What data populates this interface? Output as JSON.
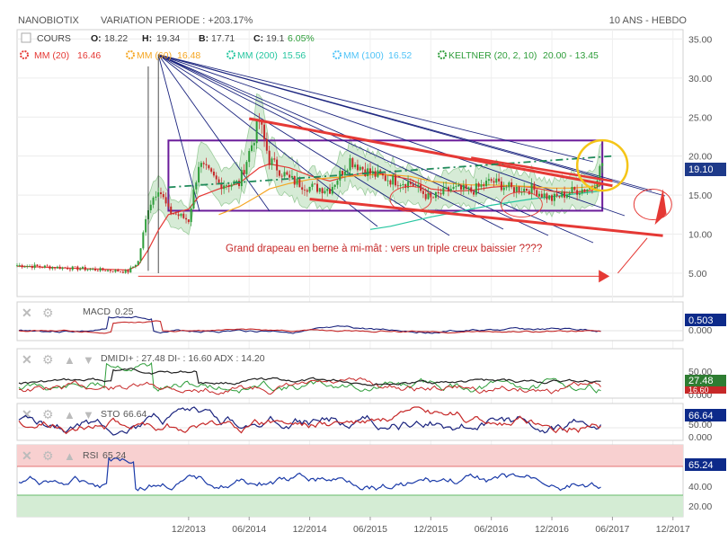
{
  "header": {
    "symbol": "NANOBIOTIX",
    "variation": "VARIATION PERIODE : +203.17%",
    "period": "10 ANS - HEBDO"
  },
  "legend": {
    "cours_label": "COURS",
    "ohlc": [
      {
        "k": "O:",
        "v": "18.22"
      },
      {
        "k": "H:",
        "v": "19.34"
      },
      {
        "k": "B:",
        "v": "17.71"
      },
      {
        "k": "C:",
        "v": "19.1"
      }
    ],
    "change": "6.05%",
    "indicators": [
      {
        "label": "MM (20)",
        "value": "16.46",
        "color": "#e53935"
      },
      {
        "label": "MM (60)",
        "value": "16.48",
        "color": "#f5a623"
      },
      {
        "label": "MM (200)",
        "value": "15.56",
        "color": "#26c6a0"
      },
      {
        "label": "MM (100)",
        "value": "16.52",
        "color": "#4fc3f7"
      },
      {
        "label": "KELTNER (20, 2, 10)",
        "value": "20.00 - 13.45",
        "color": "#2e9d3a"
      }
    ]
  },
  "annotation": "Grand drapeau en berne à mi-mât : vers un triple creux baissier ????",
  "panels": {
    "macd": {
      "label": "MACD",
      "value": "0.25",
      "badge": "0.503",
      "axis": [
        "0.000"
      ]
    },
    "dmi": {
      "label": "DMI",
      "values": "DI+ : 27.48 DI- : 16.60 ADX : 14.20",
      "badges": [
        "27.48",
        "16.60"
      ],
      "axis": [
        "50.00",
        "0.000"
      ]
    },
    "sto": {
      "label": "STO",
      "value": "66.64",
      "badge": "66.64",
      "axis": [
        "50.00",
        "0.000"
      ]
    },
    "rsi": {
      "label": "RSI",
      "value": "65.24",
      "badge": "65.24",
      "axis": [
        "40.00",
        "20.00"
      ]
    }
  },
  "colors": {
    "candle_up": "#2e9d3a",
    "candle_down": "#c62828",
    "keltner_fill": "#cfe8cf",
    "fan": "#1a237e",
    "flag_lines": "#e53935",
    "rectangle": "#6a1b9a",
    "circle": "#f5c518",
    "badge_blue": "#0d47a1",
    "badge_green": "#2e7d32",
    "badge_red": "#c62828",
    "rsi_zone": "#f8d0d0"
  },
  "chart_data": {
    "type": "line",
    "title": "NANOBIOTIX",
    "xlabel": "",
    "ylabel": "",
    "x_ticks": [
      "12/2013",
      "06/2014",
      "12/2014",
      "06/2015",
      "12/2015",
      "06/2016",
      "12/2016",
      "06/2017",
      "12/2017"
    ],
    "y_ticks": [
      5,
      10,
      15,
      20,
      25,
      30,
      35
    ],
    "ylim": [
      2.0,
      36.2
    ],
    "xlim": [
      "2012-07",
      "2018-01"
    ],
    "last_price": "19.10",
    "x": [
      "2012-07",
      "2013-01",
      "2013-06",
      "2013-07",
      "2013-08",
      "2013-09",
      "2013-10",
      "2013-12",
      "2014-01",
      "2014-03",
      "2014-05",
      "2014-07",
      "2014-08",
      "2014-10",
      "2014-12",
      "2015-02",
      "2015-04",
      "2015-06",
      "2015-08",
      "2015-10",
      "2015-12",
      "2016-02",
      "2016-04",
      "2016-06",
      "2016-08",
      "2016-10",
      "2016-12",
      "2017-02",
      "2017-04",
      "2017-05"
    ],
    "series": [
      {
        "name": "COURS",
        "values": [
          6.0,
          5.6,
          5.2,
          6.5,
          13.5,
          16.0,
          13.0,
          11.8,
          19.0,
          16.5,
          16.5,
          24.5,
          19.5,
          17.0,
          16.0,
          15.8,
          19.5,
          17.8,
          17.0,
          16.5,
          14.5,
          15.8,
          15.5,
          16.8,
          15.8,
          15.8,
          14.5,
          15.5,
          16.0,
          19.1
        ]
      },
      {
        "name": "MM (20)",
        "values": [
          5.9,
          5.6,
          5.4,
          6.0,
          8.0,
          10.5,
          12.5,
          13.2,
          14.8,
          15.8,
          16.5,
          18.5,
          19.0,
          18.5,
          17.5,
          16.8,
          17.5,
          18.0,
          17.5,
          17.0,
          15.8,
          15.5,
          15.6,
          16.0,
          16.2,
          16.0,
          15.5,
          15.3,
          15.6,
          16.46
        ]
      },
      {
        "name": "MM (60)",
        "values": [
          null,
          null,
          null,
          null,
          null,
          null,
          null,
          null,
          null,
          12.5,
          13.5,
          15.0,
          15.8,
          16.5,
          17.0,
          17.2,
          17.4,
          17.6,
          17.6,
          17.4,
          16.8,
          16.5,
          16.3,
          16.3,
          16.2,
          16.1,
          15.9,
          15.9,
          16.1,
          16.48
        ]
      },
      {
        "name": "MM (200)",
        "values": [
          null,
          null,
          null,
          null,
          null,
          null,
          null,
          null,
          null,
          null,
          null,
          null,
          null,
          null,
          null,
          null,
          null,
          10.6,
          11.0,
          11.6,
          12.2,
          12.7,
          13.2,
          13.7,
          14.1,
          14.5,
          14.8,
          15.1,
          15.4,
          15.56
        ]
      }
    ],
    "keltner": {
      "upper_last": 20.0,
      "lower_last": 13.45
    },
    "rectangle": {
      "x0": "2013-10",
      "x1": "2017-05",
      "y0": 13.0,
      "y1": 22.0
    },
    "flag": {
      "upper": [
        [
          "2014-06",
          24.8
        ],
        [
          "2017-06",
          16.2
        ]
      ],
      "lower": [
        [
          "2014-12",
          14.5
        ],
        [
          "2017-11",
          9.8
        ]
      ]
    },
    "indicators": {
      "macd": {
        "value": 0.25,
        "signal": 0.503
      },
      "dmi": {
        "di_plus": 27.48,
        "di_minus": 16.6,
        "adx": 14.2
      },
      "sto": {
        "value": 66.64
      },
      "rsi": {
        "value": 65.24
      }
    }
  }
}
